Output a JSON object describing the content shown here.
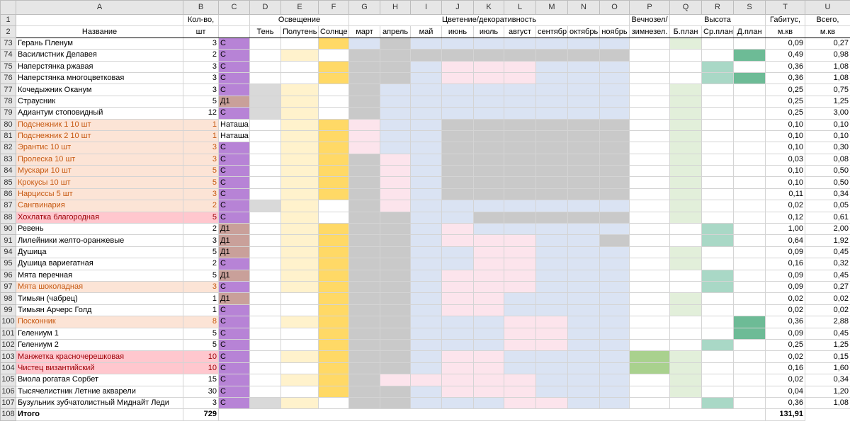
{
  "colors": {
    "purple": "#b783d6",
    "brown": "#c9a09a",
    "shade_gray": "#d9d9d9",
    "partshade_yellow": "#fff2cc",
    "sun_yellow": "#ffd966",
    "bloom_blue": "#dae3f3",
    "bloom_gray": "#c9c9c9",
    "bloom_pink": "#fce4ec",
    "evergreen_green": "#a9d18e",
    "height_light": "#e2efda",
    "height_mid": "#a9d8c6",
    "height_dark": "#6dbb96",
    "row_orange": "#fce4d6",
    "row_orange_text": "#c65911",
    "row_pink": "#ffc7ce",
    "row_pink_text": "#9c0006"
  },
  "columns": [
    "A",
    "B",
    "C",
    "D",
    "E",
    "F",
    "G",
    "H",
    "I",
    "J",
    "K",
    "L",
    "M",
    "N",
    "O",
    "P",
    "Q",
    "R",
    "S",
    "T",
    "U"
  ],
  "header_row1": {
    "rownum": "1",
    "qty": "Кол-во,",
    "lighting": "Освещение",
    "bloom": "Цветение/декоративность",
    "evergreen": "Вечнозел/",
    "height": "Высота",
    "habitus": "Габитус,",
    "total": "Всего,"
  },
  "header_row2": {
    "rownum": "2",
    "name": "Название",
    "qty_unit": "шт",
    "shade": "Тень",
    "partshade": "Полутень",
    "sun": "Солнце",
    "months": [
      "март",
      "апрель",
      "май",
      "июнь",
      "июль",
      "август",
      "сентябр",
      "октябрь",
      "ноябрь"
    ],
    "evergreen2": "зимнезел.",
    "h_back": "Б.план",
    "h_mid": "Ср.план",
    "h_far": "Д.план",
    "habitus_unit": "м.кв",
    "total_unit": "м.кв"
  },
  "rows": [
    {
      "n": "73",
      "name": "Герань Пленум",
      "qty": "3",
      "c": "С",
      "cc": "purple",
      "light": "s",
      "bloom": "BGBBBBBBB",
      "h": "Q",
      "hab": "0,09",
      "tot": "0,27",
      "hl": ""
    },
    {
      "n": "74",
      "name": "Василистник Делавея",
      "qty": "2",
      "c": "С",
      "cc": "purple",
      "light": "p",
      "bloom": "GGGGGGGGG",
      "h": "S",
      "hab": "0,49",
      "tot": "0,98",
      "hl": ""
    },
    {
      "n": "75",
      "name": "Наперстянка ржавая",
      "qty": "3",
      "c": "С",
      "cc": "purple",
      "light": "s",
      "bloom": "GGBPPPBBB",
      "h": "R",
      "hab": "0,36",
      "tot": "1,08",
      "hl": ""
    },
    {
      "n": "76",
      "name": "Наперстянка многоцветковая",
      "qty": "3",
      "c": "С",
      "cc": "purple",
      "light": "s",
      "bloom": "GGBPPPBBB",
      "h": "RS",
      "hab": "0,36",
      "tot": "1,08",
      "hl": ""
    },
    {
      "n": "77",
      "name": "Кочедыжник Оканум",
      "qty": "3",
      "c": "С",
      "cc": "purple",
      "light": "dp",
      "bloom": "GBBBBBBBB",
      "h": "Q",
      "hab": "0,25",
      "tot": "0,75",
      "hl": ""
    },
    {
      "n": "78",
      "name": "Страусник",
      "qty": "5",
      "c": "Д1",
      "cc": "brown",
      "light": "dp",
      "bloom": "GBBBBBBBB",
      "h": "Q",
      "hab": "0,25",
      "tot": "1,25",
      "hl": ""
    },
    {
      "n": "79",
      "name": "Адиантум стоповидный",
      "qty": "12",
      "c": "С",
      "cc": "purple",
      "light": "dp",
      "bloom": "GBBBBBBBB",
      "h": "Q",
      "hab": "0,25",
      "tot": "3,00",
      "hl": ""
    },
    {
      "n": "80",
      "name": "Подснежник 1 10 шт",
      "qty": "1",
      "c": "Наташа",
      "cc": "",
      "light": "ps",
      "bloom": "PBBGGGGGG",
      "h": "Q",
      "hab": "0,10",
      "tot": "0,10",
      "hl": "o"
    },
    {
      "n": "81",
      "name": "Подснежник 2 10 шт",
      "qty": "1",
      "c": "Наташа",
      "cc": "",
      "light": "ps",
      "bloom": "PBBGGGGGG",
      "h": "Q",
      "hab": "0,10",
      "tot": "0,10",
      "hl": "o"
    },
    {
      "n": "82",
      "name": "Эрантис 10 шт",
      "qty": "3",
      "c": "С",
      "cc": "purple",
      "light": "ps",
      "bloom": "PBBGGGGGG",
      "h": "Q",
      "hab": "0,10",
      "tot": "0,30",
      "hl": "o"
    },
    {
      "n": "83",
      "name": "Пролеска 10 шт",
      "qty": "3",
      "c": "С",
      "cc": "purple",
      "light": "ps",
      "bloom": "GPBGGGGGG",
      "h": "Q",
      "hab": "0,03",
      "tot": "0,08",
      "hl": "o"
    },
    {
      "n": "84",
      "name": "Мускари 10 шт",
      "qty": "5",
      "c": "С",
      "cc": "purple",
      "light": "ps",
      "bloom": "GPBGGGGGG",
      "h": "Q",
      "hab": "0,10",
      "tot": "0,50",
      "hl": "o"
    },
    {
      "n": "85",
      "name": "Крокусы 10 шт",
      "qty": "5",
      "c": "С",
      "cc": "purple",
      "light": "ps",
      "bloom": "GPBGGGGGG",
      "h": "Q",
      "hab": "0,10",
      "tot": "0,50",
      "hl": "o"
    },
    {
      "n": "86",
      "name": "Нарциссы 5 шт",
      "qty": "3",
      "c": "С",
      "cc": "purple",
      "light": "ps",
      "bloom": "GPBGGGGGG",
      "h": "Q",
      "hab": "0,11",
      "tot": "0,34",
      "hl": "o"
    },
    {
      "n": "87",
      "name": "Сангвинария",
      "qty": "2",
      "c": "С",
      "cc": "purple",
      "light": "dp",
      "bloom": "GPBBBBBBB",
      "h": "Q",
      "hab": "0,02",
      "tot": "0,05",
      "hl": "o"
    },
    {
      "n": "88",
      "name": "Хохлатка благородная",
      "qty": "5",
      "c": "С",
      "cc": "purple",
      "light": "p",
      "bloom": "GGBBGGGGG",
      "h": "Q",
      "hab": "0,12",
      "tot": "0,61",
      "hl": "p"
    },
    {
      "n": "90",
      "name": "Ревень",
      "qty": "2",
      "c": "Д1",
      "cc": "brown",
      "light": "ps",
      "bloom": "GGBPBBBBB",
      "h": "R",
      "hab": "1,00",
      "tot": "2,00",
      "hl": ""
    },
    {
      "n": "91",
      "name": "Лилейники желто-оранжевые",
      "qty": "3",
      "c": "Д1",
      "cc": "brown",
      "light": "ps",
      "bloom": "GGBPPPBBG",
      "h": "R",
      "hab": "0,64",
      "tot": "1,92",
      "hl": ""
    },
    {
      "n": "94",
      "name": "Душица",
      "qty": "5",
      "c": "Д1",
      "cc": "brown",
      "light": "ps",
      "bloom": "GGBBPPBBB",
      "h": "Q",
      "hab": "0,09",
      "tot": "0,45",
      "hl": ""
    },
    {
      "n": "95",
      "name": "Душица вариегатная",
      "qty": "2",
      "c": "С",
      "cc": "purple",
      "light": "ps",
      "bloom": "GGBBPPBBB",
      "h": "Q",
      "hab": "0,16",
      "tot": "0,32",
      "hl": ""
    },
    {
      "n": "96",
      "name": "Мята перечная",
      "qty": "5",
      "c": "Д1",
      "cc": "brown",
      "light": "ps",
      "bloom": "GGBPPPBBB",
      "h": "R",
      "hab": "0,09",
      "tot": "0,45",
      "hl": ""
    },
    {
      "n": "97",
      "name": "Мята шоколадная",
      "qty": "3",
      "c": "С",
      "cc": "purple",
      "light": "ps",
      "bloom": "GGBPPPBBB",
      "h": "R",
      "hab": "0,09",
      "tot": "0,27",
      "hl": "o"
    },
    {
      "n": "98",
      "name": "Тимьян (чабрец)",
      "qty": "1",
      "c": "Д1",
      "cc": "brown",
      "light": "s",
      "bloom": "GGBPPBBBB",
      "h": "Q",
      "hab": "0,02",
      "tot": "0,02",
      "hl": ""
    },
    {
      "n": "99",
      "name": "Тимьян Арчерс Голд",
      "qty": "1",
      "c": "С",
      "cc": "purple",
      "light": "s",
      "bloom": "GGBPPBBBB",
      "h": "Q",
      "hab": "0,02",
      "tot": "0,02",
      "hl": ""
    },
    {
      "n": "100",
      "name": "Посконник",
      "qty": "8",
      "c": "С",
      "cc": "purple",
      "light": "ps",
      "bloom": "GGBBBPPBB",
      "h": "S",
      "hab": "0,36",
      "tot": "2,88",
      "hl": "o"
    },
    {
      "n": "101",
      "name": "Гелениум 1",
      "qty": "5",
      "c": "С",
      "cc": "purple",
      "light": "s",
      "bloom": "GGBBBPPBB",
      "h": "S",
      "hab": "0,09",
      "tot": "0,45",
      "hl": ""
    },
    {
      "n": "102",
      "name": "Гелениум 2",
      "qty": "5",
      "c": "С",
      "cc": "purple",
      "light": "s",
      "bloom": "GGBBBPPBB",
      "h": "R",
      "hab": "0,25",
      "tot": "1,25",
      "hl": ""
    },
    {
      "n": "103",
      "name": "Манжетка красночерешковая",
      "qty": "10",
      "c": "С",
      "cc": "purple",
      "light": "ps",
      "bloom": "GGBPPBBBB",
      "h": "PQ",
      "hab": "0,02",
      "tot": "0,15",
      "hl": "p"
    },
    {
      "n": "104",
      "name": "Чистец византийский",
      "qty": "10",
      "c": "С",
      "cc": "purple",
      "light": "s",
      "bloom": "GGBPPBBBB",
      "h": "PQ",
      "hab": "0,16",
      "tot": "1,60",
      "hl": "p"
    },
    {
      "n": "105",
      "name": "Виола рогатая Сорбет",
      "qty": "15",
      "c": "С",
      "cc": "purple",
      "light": "ps",
      "bloom": "GPPPPPBBB",
      "h": "Q",
      "hab": "0,02",
      "tot": "0,34",
      "hl": ""
    },
    {
      "n": "106",
      "name": "Тысячелистник Летние акварели",
      "qty": "30",
      "c": "С",
      "cc": "purple",
      "light": "s",
      "bloom": "GGBPPPBBB",
      "h": "Q",
      "hab": "0,04",
      "tot": "1,20",
      "hl": ""
    },
    {
      "n": "107",
      "name": "Бузульник зубчатолистный Миднайт Леди",
      "qty": "3",
      "c": "С",
      "cc": "purple",
      "light": "dp",
      "bloom": "GGBBBPPBB",
      "h": "R",
      "hab": "0,36",
      "tot": "1,08",
      "hl": ""
    }
  ],
  "total": {
    "n": "108",
    "label": "Итого",
    "qty": "729",
    "sum": "131,91"
  }
}
